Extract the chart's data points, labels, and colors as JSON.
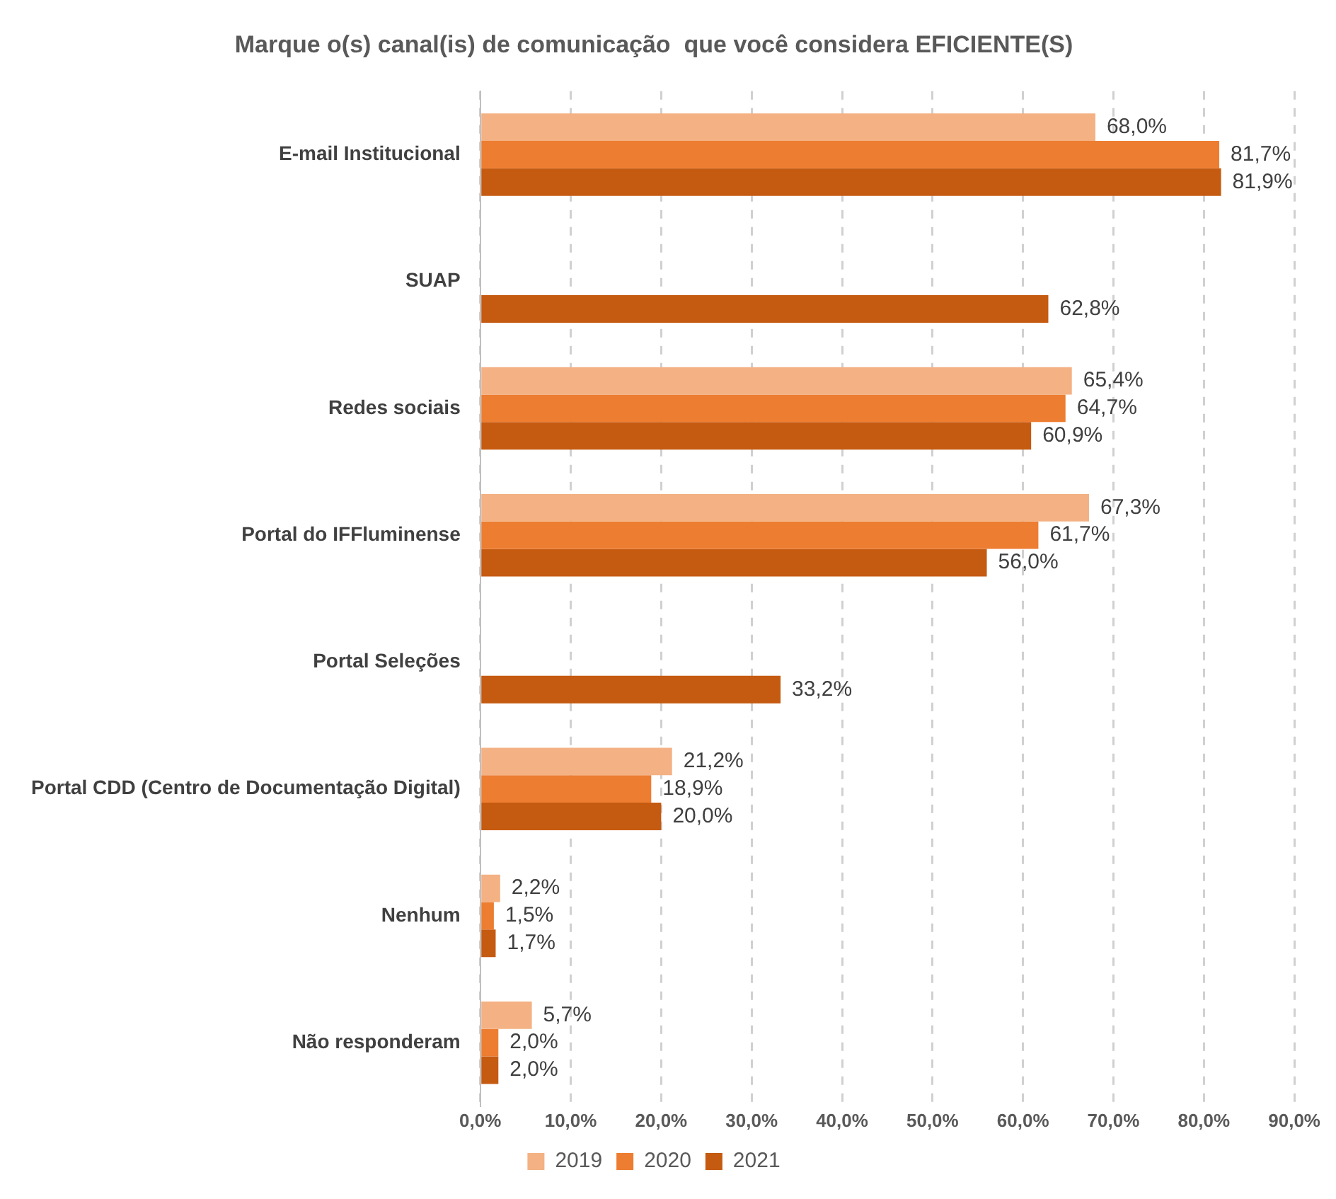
{
  "chart_data": {
    "type": "bar",
    "orientation": "horizontal",
    "title": "Marque o(s) canal(is) de comunicação  que você considera EFICIENTE(S)",
    "categories": [
      "E-mail Institucional",
      "SUAP",
      "Redes sociais",
      "Portal do IFFluminense",
      "Portal Seleções",
      "Portal CDD (Centro de Documentação Digital)",
      "Nenhum",
      "Não responderam"
    ],
    "series": [
      {
        "name": "2019",
        "color": "#f4b183",
        "values": [
          68.0,
          null,
          65.4,
          67.3,
          null,
          21.2,
          2.2,
          5.7
        ],
        "value_labels": [
          "68,0%",
          null,
          "65,4%",
          "67,3%",
          null,
          "21,2%",
          "2,2%",
          "5,7%"
        ]
      },
      {
        "name": "2020",
        "color": "#ed7d31",
        "values": [
          81.7,
          null,
          64.7,
          61.7,
          null,
          18.9,
          1.5,
          2.0
        ],
        "value_labels": [
          "81,7%",
          null,
          "64,7%",
          "61,7%",
          null,
          "18,9%",
          "1,5%",
          "2,0%"
        ]
      },
      {
        "name": "2021",
        "color": "#c55a11",
        "values": [
          81.9,
          62.8,
          60.9,
          56.0,
          33.2,
          20.0,
          1.7,
          2.0
        ],
        "value_labels": [
          "81,9%",
          "62,8%",
          "60,9%",
          "56,0%",
          "33,2%",
          "20,0%",
          "1,7%",
          "2,0%"
        ]
      }
    ],
    "xlim": [
      0,
      90
    ],
    "xticks": [
      {
        "value": 0,
        "label": "0,0%"
      },
      {
        "value": 10,
        "label": "10,0%"
      },
      {
        "value": 20,
        "label": "20,0%"
      },
      {
        "value": 30,
        "label": "30,0%"
      },
      {
        "value": 40,
        "label": "40,0%"
      },
      {
        "value": 50,
        "label": "50,0%"
      },
      {
        "value": 60,
        "label": "60,0%"
      },
      {
        "value": 70,
        "label": "70,0%"
      },
      {
        "value": 80,
        "label": "80,0%"
      },
      {
        "value": 90,
        "label": "90,0%"
      }
    ],
    "grid": "x",
    "legend": "bottom"
  }
}
